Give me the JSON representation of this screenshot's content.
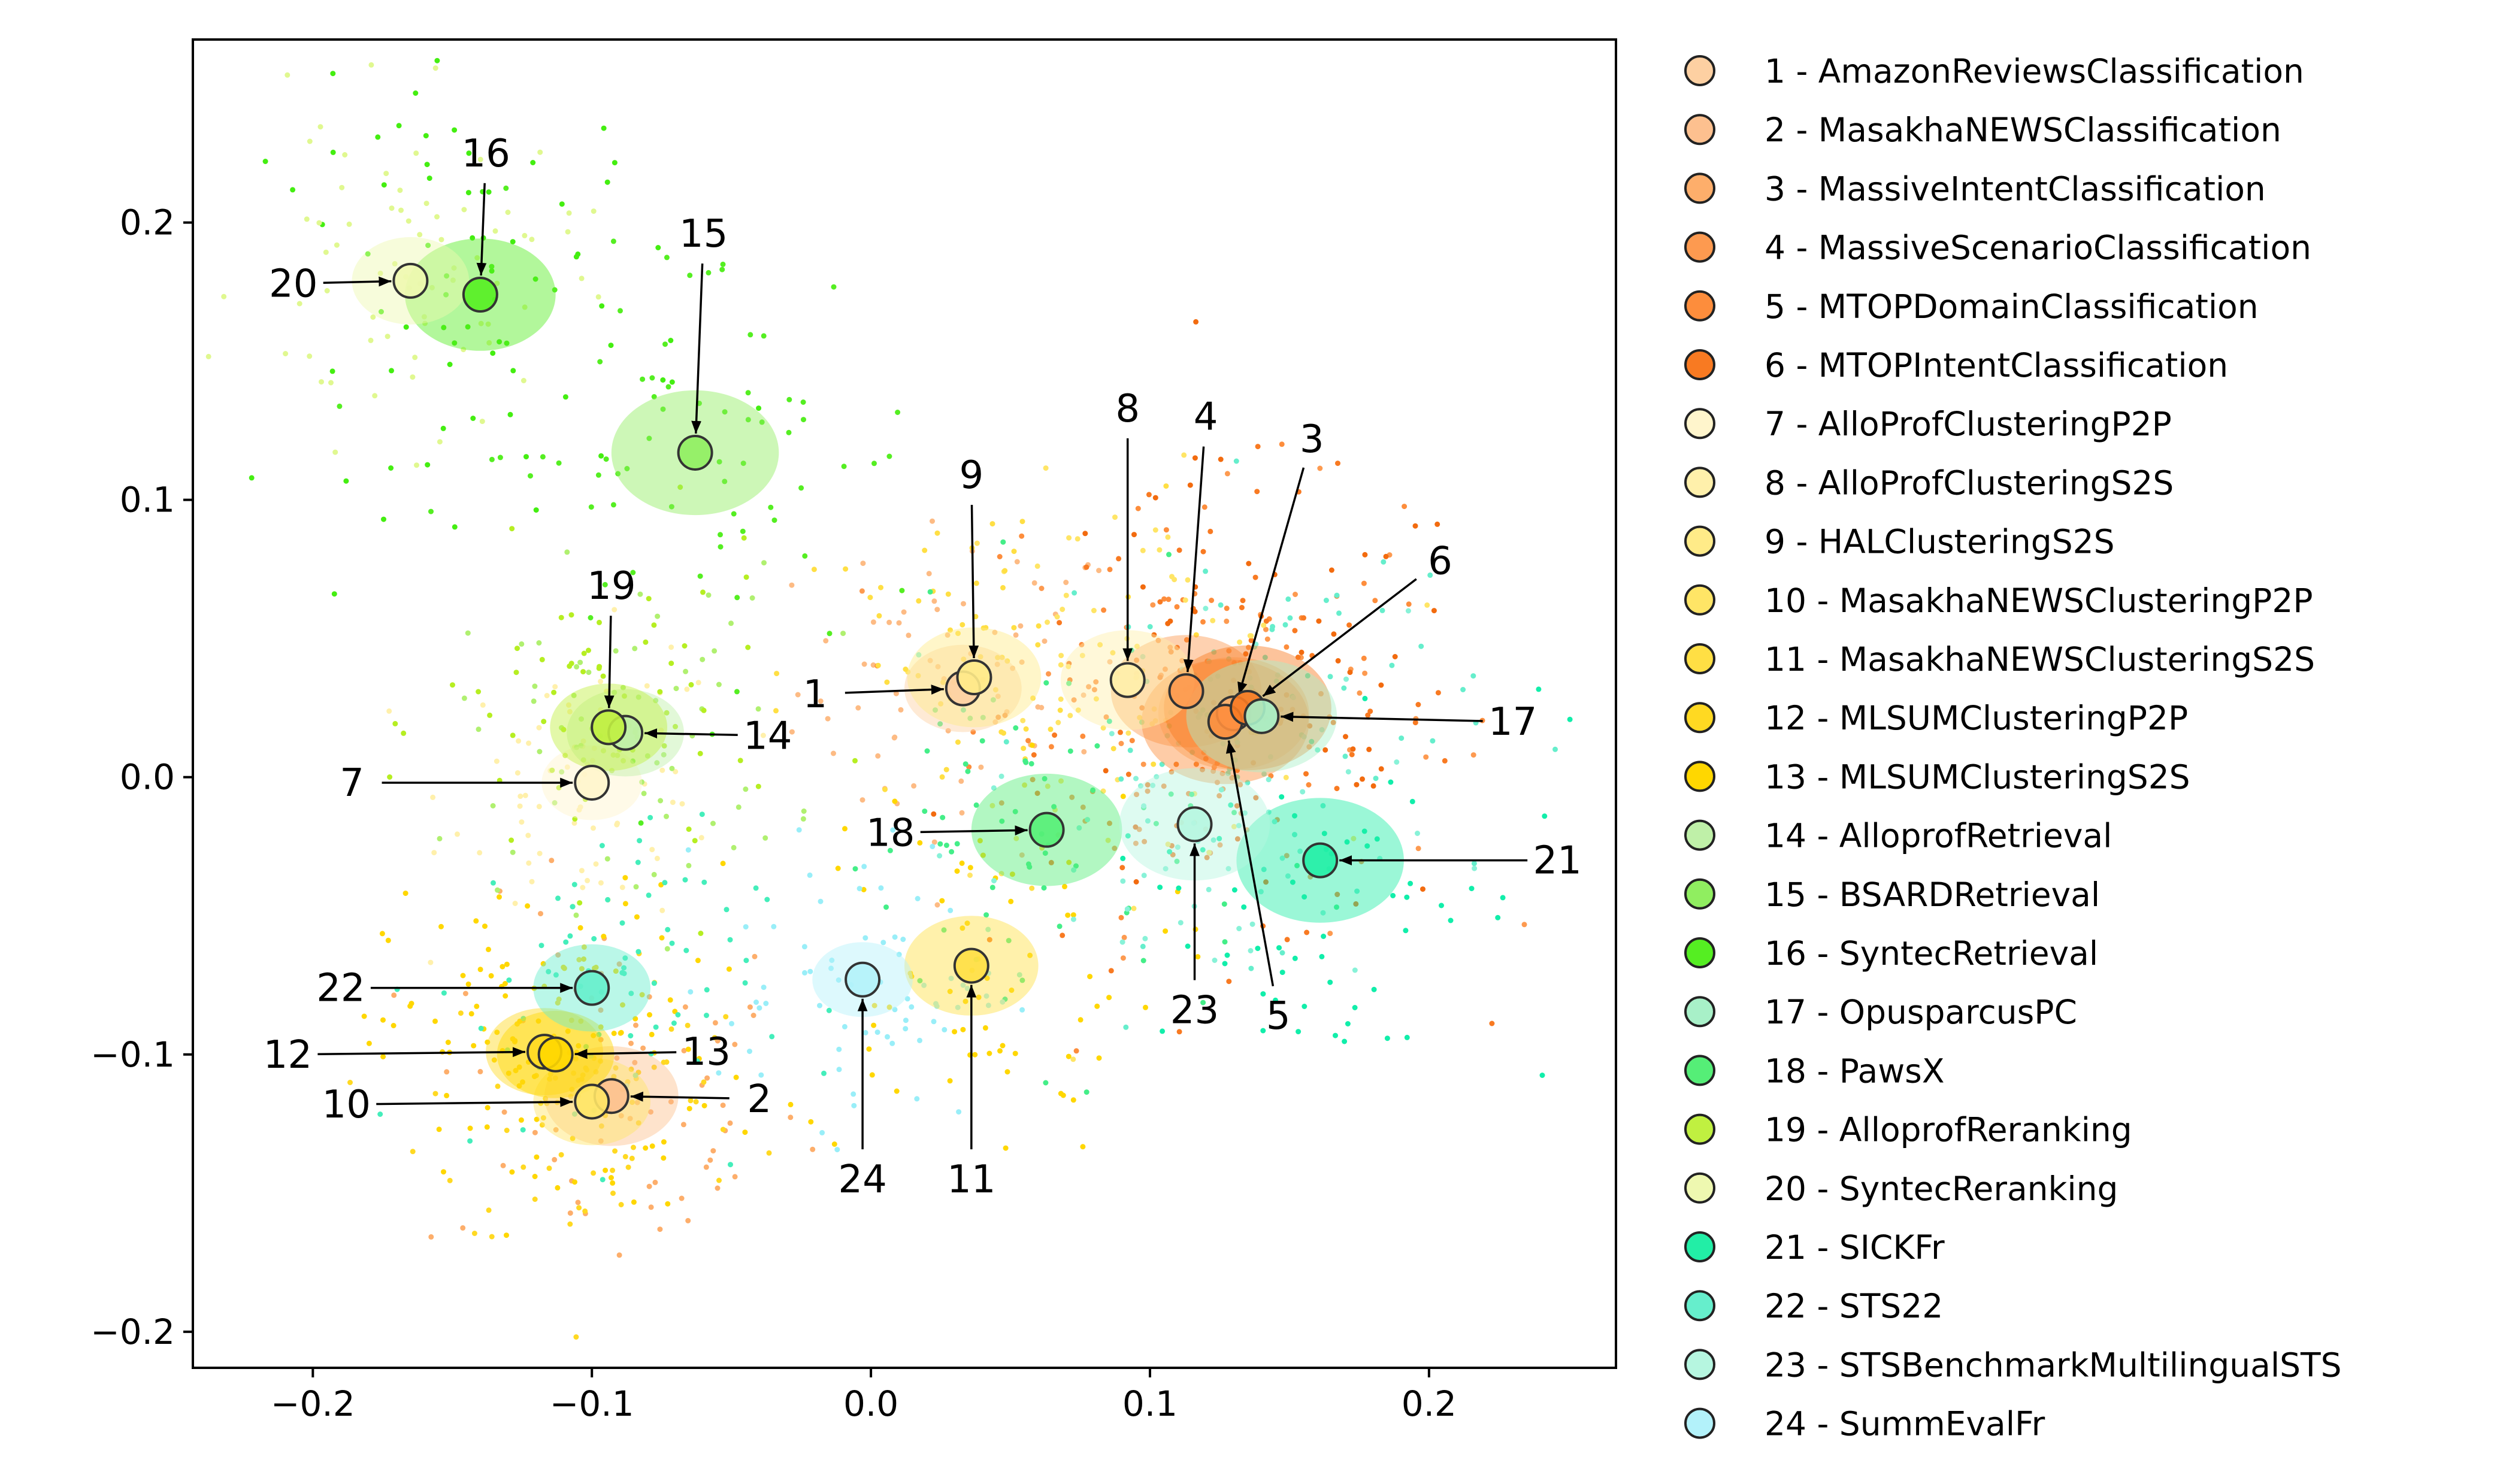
{
  "chart_data": {
    "type": "scatter",
    "title": "",
    "xlabel": "",
    "ylabel": "",
    "xlim": [
      -0.243,
      0.267
    ],
    "ylim": [
      -0.213,
      0.266
    ],
    "xticks": [
      -0.2,
      -0.1,
      0.0,
      0.1,
      0.2
    ],
    "yticks": [
      -0.2,
      -0.1,
      0.0,
      0.1,
      0.2
    ],
    "xtick_labels": [
      "−0.2",
      "−0.1",
      "0.0",
      "0.1",
      "0.2"
    ],
    "ytick_labels": [
      "−0.2",
      "−0.1",
      "0.0",
      "0.1",
      "0.2"
    ],
    "grid": false,
    "legend_position": "outside-right",
    "tasks": [
      {
        "id": "1",
        "name": "1 - AmazonReviewsClassification",
        "color": "#fdd0a2",
        "x": 0.033,
        "y": 0.032,
        "label_x": -0.02,
        "label_y": 0.03
      },
      {
        "id": "2",
        "name": "2 - MasakhaNEWSClassification",
        "color": "#fdc08f",
        "x": -0.093,
        "y": -0.115,
        "label_x": -0.04,
        "label_y": -0.116
      },
      {
        "id": "3",
        "name": "3 - MassiveIntentClassification",
        "color": "#fdae6b",
        "x": 0.13,
        "y": 0.023,
        "label_x": 0.158,
        "label_y": 0.122
      },
      {
        "id": "4",
        "name": "4 - MassiveScenarioClassification",
        "color": "#fd9a50",
        "x": 0.113,
        "y": 0.031,
        "label_x": 0.12,
        "label_y": 0.13
      },
      {
        "id": "5",
        "name": "5 - MTOPDomainClassification",
        "color": "#fd8d3c",
        "x": 0.127,
        "y": 0.02,
        "label_x": 0.146,
        "label_y": -0.086
      },
      {
        "id": "6",
        "name": "6 - MTOPIntentClassification",
        "color": "#f87a22",
        "x": 0.135,
        "y": 0.025,
        "label_x": 0.204,
        "label_y": 0.078
      },
      {
        "id": "7",
        "name": "7 - AlloProfClusteringP2P",
        "color": "#fff5cc",
        "x": -0.1,
        "y": -0.002,
        "label_x": -0.186,
        "label_y": -0.002
      },
      {
        "id": "8",
        "name": "8 - AlloProfClusteringS2S",
        "color": "#fff0ab",
        "x": 0.092,
        "y": 0.035,
        "label_x": 0.092,
        "label_y": 0.133
      },
      {
        "id": "9",
        "name": "9 - HALClusteringS2S",
        "color": "#ffeb88",
        "x": 0.037,
        "y": 0.036,
        "label_x": 0.036,
        "label_y": 0.109
      },
      {
        "id": "10",
        "name": "10 - MasakhaNEWSClusteringP2P",
        "color": "#ffe566",
        "x": -0.1,
        "y": -0.117,
        "label_x": -0.188,
        "label_y": -0.118
      },
      {
        "id": "11",
        "name": "11 - MasakhaNEWSClusteringS2S",
        "color": "#ffdf44",
        "x": 0.036,
        "y": -0.068,
        "label_x": 0.036,
        "label_y": -0.145
      },
      {
        "id": "12",
        "name": "12 - MLSUMClusteringP2P",
        "color": "#ffd922",
        "x": -0.117,
        "y": -0.099,
        "label_x": -0.209,
        "label_y": -0.1
      },
      {
        "id": "13",
        "name": "13 - MLSUMClusteringS2S",
        "color": "#ffd700",
        "x": -0.113,
        "y": -0.1,
        "label_x": -0.059,
        "label_y": -0.099
      },
      {
        "id": "14",
        "name": "14 - AlloprofRetrieval",
        "color": "#bff0a8",
        "x": -0.088,
        "y": 0.016,
        "label_x": -0.037,
        "label_y": 0.015
      },
      {
        "id": "15",
        "name": "15 - BSARDRetrieval",
        "color": "#90ee60",
        "x": -0.063,
        "y": 0.117,
        "label_x": -0.06,
        "label_y": 0.196
      },
      {
        "id": "16",
        "name": "16 - SyntecRetrieval",
        "color": "#55ee22",
        "x": -0.14,
        "y": 0.174,
        "label_x": -0.138,
        "label_y": 0.225
      },
      {
        "id": "17",
        "name": "17 - OpusparcusPC",
        "color": "#a8f0c8",
        "x": 0.14,
        "y": 0.022,
        "label_x": 0.23,
        "label_y": 0.02
      },
      {
        "id": "18",
        "name": "18 - PawsX",
        "color": "#55ee77",
        "x": 0.063,
        "y": -0.019,
        "label_x": 0.007,
        "label_y": -0.02
      },
      {
        "id": "19",
        "name": "19 - AlloprofReranking",
        "color": "#c0f040",
        "x": -0.094,
        "y": 0.018,
        "label_x": -0.093,
        "label_y": 0.069
      },
      {
        "id": "20",
        "name": "20 - SyntecReranking",
        "color": "#eef8b0",
        "x": -0.165,
        "y": 0.179,
        "label_x": -0.207,
        "label_y": 0.178
      },
      {
        "id": "21",
        "name": "21 - SICKFr",
        "color": "#22eea6",
        "x": 0.161,
        "y": -0.03,
        "label_x": 0.246,
        "label_y": -0.03
      },
      {
        "id": "22",
        "name": "22 - STS22",
        "color": "#66eecc",
        "x": -0.1,
        "y": -0.076,
        "label_x": -0.19,
        "label_y": -0.076
      },
      {
        "id": "23",
        "name": "23 - STSBenchmarkMultilingualSTS",
        "color": "#b6f6e0",
        "x": 0.116,
        "y": -0.017,
        "label_x": 0.116,
        "label_y": -0.084
      },
      {
        "id": "24",
        "name": "24 - SummEvalFr",
        "color": "#b3f2fa",
        "x": -0.003,
        "y": -0.073,
        "label_x": -0.003,
        "label_y": -0.145
      }
    ]
  }
}
